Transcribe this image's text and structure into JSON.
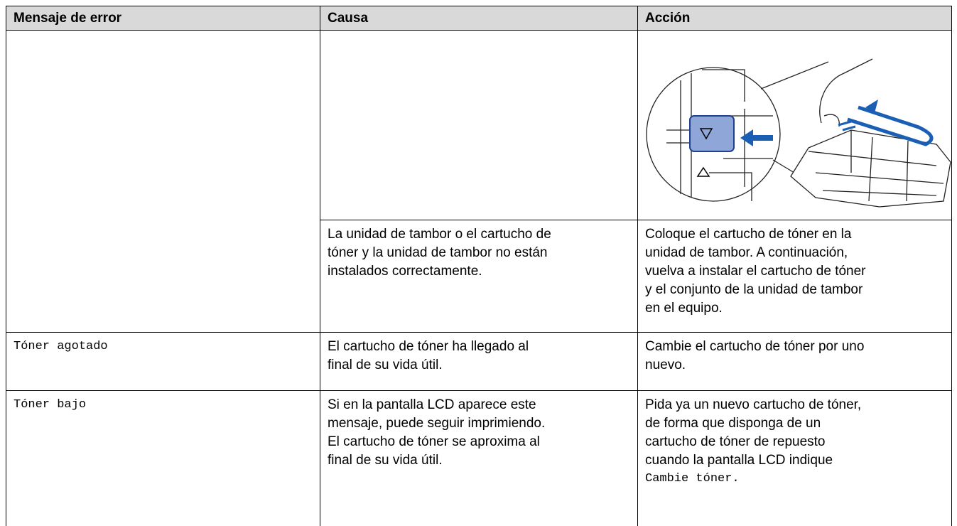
{
  "table": {
    "headers": [
      "Mensaje de error",
      "Causa",
      "Acción"
    ],
    "rows": [
      {
        "cause": [
          "La unidad de tambor o el cartucho de",
          "tóner y la unidad de tambor no están",
          "instalados correctamente."
        ],
        "action": [
          "Coloque el cartucho de tóner en la",
          "unidad de tambor. A continuación,",
          "vuelva a instalar el cartucho de tóner",
          "y el conjunto de la unidad de tambor",
          "en el equipo."
        ]
      },
      {
        "message": "Tóner agotado",
        "cause": [
          "El cartucho de tóner ha llegado al",
          "final de su vida útil."
        ],
        "action": [
          "Cambie el cartucho de tóner por uno",
          "nuevo."
        ]
      },
      {
        "message": "Tóner bajo",
        "cause": [
          "Si en la pantalla LCD aparece este",
          "mensaje, puede seguir imprimiendo.",
          "El cartucho de tóner se aproxima al",
          "final de su vida útil."
        ],
        "action": [
          "Pida ya un nuevo cartucho de tóner,",
          "de forma que disponga de un",
          "cartucho de tóner de repuesto",
          "cuando la pantalla LCD indique"
        ],
        "action_code": "Cambie tóner."
      }
    ]
  }
}
